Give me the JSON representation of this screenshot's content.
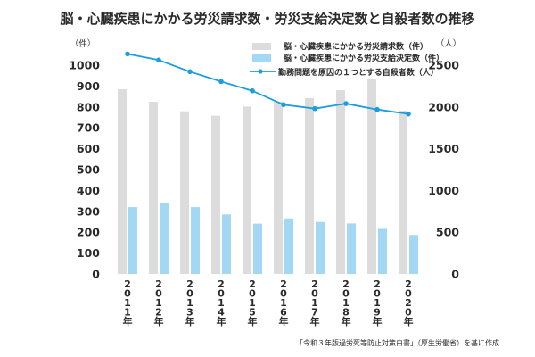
{
  "chart_data": {
    "type": "bar",
    "title": "脳・心臓疾患にかかる労災請求数・労災支給決定数と自殺者数の推移",
    "categories": [
      "2011年",
      "2012年",
      "2013年",
      "2014年",
      "2015年",
      "2016年",
      "2017年",
      "2018年",
      "2019年",
      "2020年"
    ],
    "category_chars": [
      [
        "2",
        "0",
        "1",
        "1",
        "年"
      ],
      [
        "2",
        "0",
        "1",
        "2",
        "年"
      ],
      [
        "2",
        "0",
        "1",
        "3",
        "年"
      ],
      [
        "2",
        "0",
        "1",
        "4",
        "年"
      ],
      [
        "2",
        "0",
        "1",
        "5",
        "年"
      ],
      [
        "2",
        "0",
        "1",
        "6",
        "年"
      ],
      [
        "2",
        "0",
        "1",
        "7",
        "年"
      ],
      [
        "2",
        "0",
        "1",
        "8",
        "年"
      ],
      [
        "2",
        "0",
        "1",
        "9",
        "年"
      ],
      [
        "2",
        "0",
        "2",
        "0",
        "年"
      ]
    ],
    "series": [
      {
        "name": "脳・心臓疾患にかかる労災請求数（件）",
        "type": "bar",
        "axis": "left",
        "color": "#dcdcdc",
        "values": [
          885,
          825,
          779,
          758,
          802,
          826,
          842,
          880,
          936,
          782
        ]
      },
      {
        "name": "脳・心臓疾患にかかる労災支給決定数（件）",
        "type": "bar",
        "axis": "left",
        "color": "#a3d8f4",
        "values": [
          320,
          342,
          320,
          285,
          241,
          266,
          249,
          242,
          216,
          187
        ]
      },
      {
        "name": "勤務問題を原因の１つとする自殺者数（人）",
        "type": "line",
        "axis": "right",
        "color": "#1a9ee0",
        "values": [
          2635,
          2561,
          2422,
          2304,
          2193,
          2027,
          1980,
          2040,
          1969,
          1916
        ]
      }
    ],
    "left_axis": {
      "unit_label": "（件）",
      "range": [
        0,
        1000
      ],
      "ticks": [
        "0",
        "100",
        "200",
        "300",
        "400",
        "500",
        "600",
        "700",
        "800",
        "900",
        "1000"
      ]
    },
    "right_axis": {
      "unit_label": "（人）",
      "range": [
        0,
        2500
      ],
      "ticks": [
        "0",
        "500",
        "1000",
        "1500",
        "2000",
        "2500"
      ]
    },
    "grid": false,
    "legend_position": "top-right",
    "source_note": "「令和３年版過労死等防止対策白書」（厚生労働省）を基に作成"
  }
}
